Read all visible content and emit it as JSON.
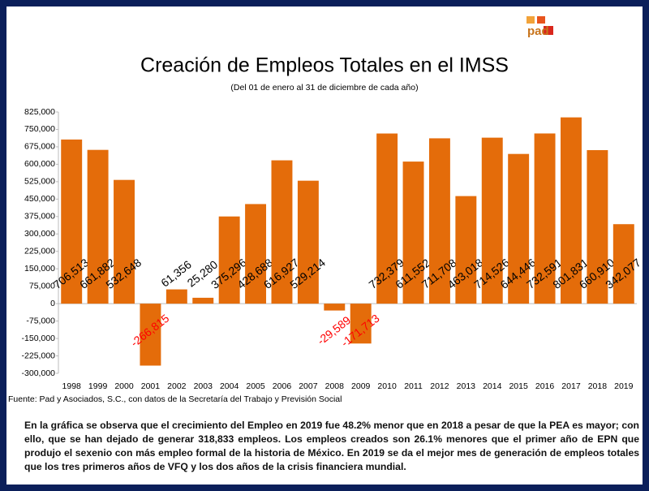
{
  "logo": "pad",
  "chart_data": {
    "type": "bar",
    "title": "Creación de Empleos Totales en el IMSS",
    "subtitle": "(Del 01 de enero  al 31 de diciembre de cada año)",
    "source": "Fuente: Pad y Asociados, S.C., con datos de la Secretaría del Trabajo y Previsión Social",
    "categories": [
      "1998",
      "1999",
      "2000",
      "2001",
      "2002",
      "2003",
      "2004",
      "2005",
      "2006",
      "2007",
      "2008",
      "2009",
      "2010",
      "2011",
      "2012",
      "2013",
      "2014",
      "2015",
      "2016",
      "2017",
      "2018",
      "2019"
    ],
    "values": [
      706513,
      661882,
      532648,
      -266815,
      61356,
      25280,
      375296,
      428688,
      616927,
      529214,
      -29589,
      -171713,
      732379,
      611552,
      711708,
      463018,
      714526,
      644446,
      732591,
      801831,
      660910,
      342077
    ],
    "value_labels": [
      "706,513",
      "661,882",
      "532,648",
      "-266,815",
      "61,356",
      "25,280",
      "375,296",
      "428,688",
      "616,927",
      "529,214",
      "-29,589",
      "-171,713",
      "732,379",
      "611,552",
      "711,708",
      "463,018",
      "714,526",
      "644,446",
      "732,591",
      "801,831",
      "660,910",
      "342,077"
    ],
    "color": "#e46c0a",
    "negative_label_color": "#ff0000",
    "ylim": [
      -300000,
      825000
    ],
    "yticks": [
      {
        "value": -300000,
        "label": "-300,000"
      },
      {
        "value": -225000,
        "label": "-225,000"
      },
      {
        "value": -150000,
        "label": "-150,000"
      },
      {
        "value": -75000,
        "label": "-75,000"
      },
      0,
      {
        "value": 75000,
        "label": "75,000"
      },
      {
        "value": 150000,
        "label": "150,000"
      },
      {
        "value": 225000,
        "label": "225,000"
      },
      {
        "value": 300000,
        "label": "300,000"
      },
      {
        "value": 375000,
        "label": "375,000"
      },
      {
        "value": 450000,
        "label": "450,000"
      },
      {
        "value": 525000,
        "label": "525,000"
      },
      {
        "value": 600000,
        "label": "600,000"
      },
      {
        "value": 675000,
        "label": "675,000"
      },
      {
        "value": 750000,
        "label": "750,000"
      },
      {
        "value": 825000,
        "label": "825,000"
      }
    ],
    "grid": false
  },
  "paragraph": "En la gráfica se observa que el crecimiento del Empleo en 2019 fue 48.2% menor que en 2018 a pesar de que la PEA es mayor; con ello, que se han dejado de generar 318,833 empleos. Los empleos creados son 26.1% menores que el primer año de EPN que produjo el sexenio con más empleo formal de la historia de México. En 2019 se da el mejor mes de generación de empleos totales que los tres primeros años de VFQ y los dos años de la crisis financiera mundial."
}
